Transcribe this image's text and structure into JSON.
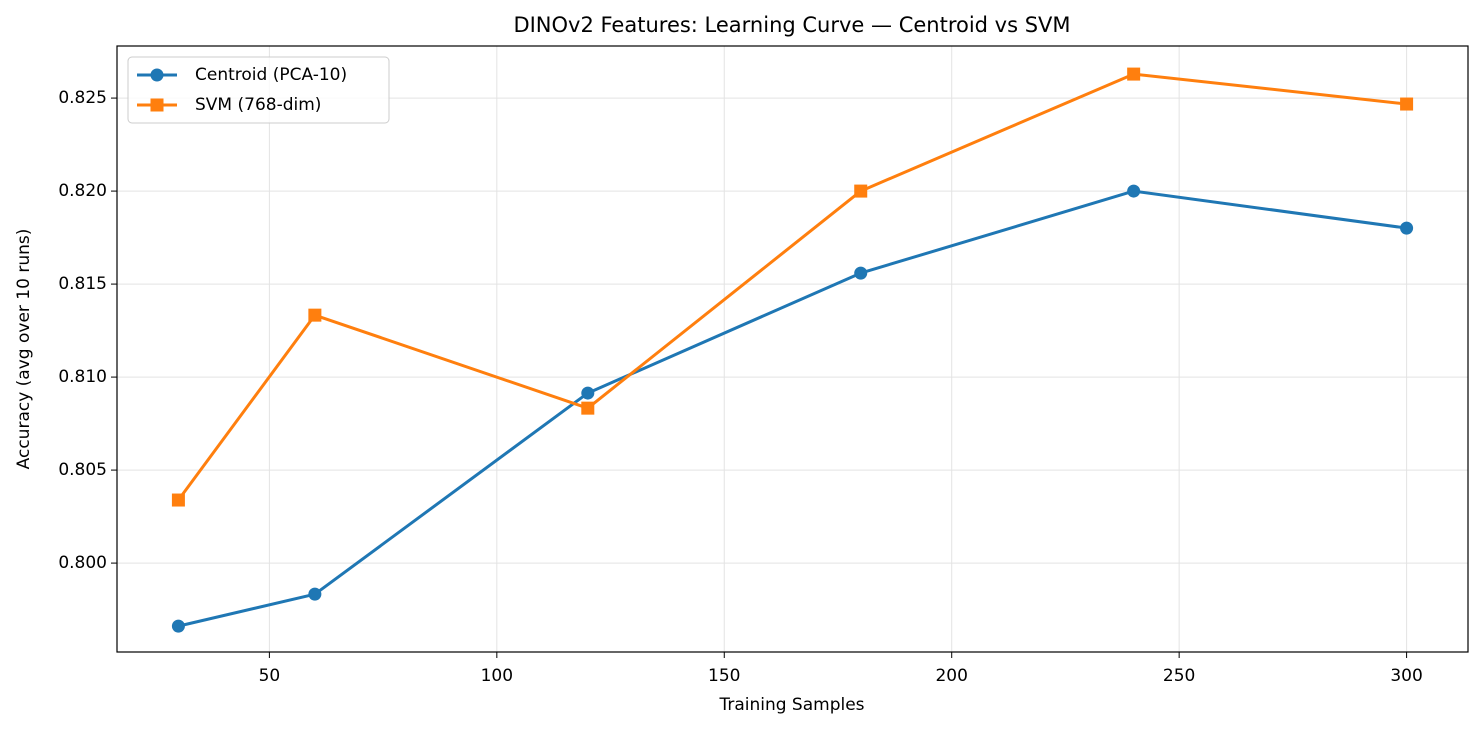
{
  "chart_data": {
    "type": "line",
    "title": "DINOv2 Features: Learning Curve — Centroid vs SVM",
    "x_label": "Training Samples",
    "y_label": "Accuracy (avg over 10 runs)",
    "x": [
      30,
      60,
      120,
      180,
      240,
      300
    ],
    "series": [
      {
        "name": "Centroid (PCA-10)",
        "color": "#1f77b4",
        "marker": "circle",
        "values": [
          0.79661,
          0.79833,
          0.80914,
          0.81559,
          0.82,
          0.81801
        ]
      },
      {
        "name": "SVM (768-dim)",
        "color": "#ff7f0e",
        "marker": "square",
        "values": [
          0.80339,
          0.81333,
          0.80833,
          0.82,
          0.82629,
          0.82468
        ]
      }
    ],
    "xlim": [
      16.5,
      313.5
    ],
    "ylim": [
      0.79522,
      0.8278
    ],
    "xticks": [
      50,
      100,
      150,
      200,
      250,
      300
    ],
    "yticks": [
      {
        "value": 0.8,
        "label": "0.800"
      },
      {
        "value": 0.805,
        "label": "0.805"
      },
      {
        "value": 0.81,
        "label": "0.810"
      },
      {
        "value": 0.815,
        "label": "0.815"
      },
      {
        "value": 0.82,
        "label": "0.820"
      },
      {
        "value": 0.825,
        "label": "0.825"
      }
    ],
    "grid": true,
    "legend": "upper-left"
  }
}
